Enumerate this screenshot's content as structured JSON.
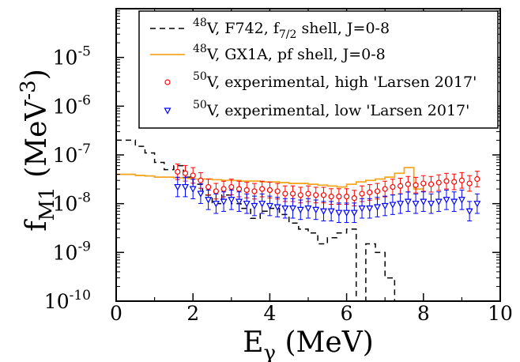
{
  "chart_data": {
    "type": "line",
    "title": "",
    "xlabel": {
      "main": "E",
      "sub": "γ",
      "unit": " (MeV)"
    },
    "ylabel": {
      "main": "f",
      "sub": "M1",
      "unit": " (MeV",
      "sup": "-3",
      "close": ")"
    },
    "xlim": [
      0,
      10
    ],
    "ylim": [
      1e-10,
      0.0001
    ],
    "yscale": "log",
    "grid": false,
    "legend_position": "top-right",
    "x_ticks": [
      {
        "value": 0,
        "label": "0"
      },
      {
        "value": 2,
        "label": "2"
      },
      {
        "value": 4,
        "label": "4"
      },
      {
        "value": 6,
        "label": "6"
      },
      {
        "value": 8,
        "label": "8"
      },
      {
        "value": 10,
        "label": "10"
      }
    ],
    "y_ticks": [
      {
        "value": 1e-10,
        "base": "10",
        "exp": "-10"
      },
      {
        "value": 1e-09,
        "base": "10",
        "exp": "-9"
      },
      {
        "value": 1e-08,
        "base": "10",
        "exp": "-8"
      },
      {
        "value": 1e-07,
        "base": "10",
        "exp": "-7"
      },
      {
        "value": 1e-06,
        "base": "10",
        "exp": "-6"
      },
      {
        "value": 1e-05,
        "base": "10",
        "exp": "-5"
      }
    ],
    "legend": [
      {
        "sup": "48",
        "text": "V, F742, f",
        "sub": "7/2",
        "text2": " shell, J=0-8"
      },
      {
        "sup": "48",
        "text": "V, GX1A, pf shell, J=0-8",
        "sub": "",
        "text2": ""
      },
      {
        "sup": "50",
        "text": "V, experimental, high 'Larsen 2017'",
        "sub": "",
        "text2": ""
      },
      {
        "sup": "50",
        "text": "V, experimental, low 'Larsen 2017'",
        "sub": "",
        "text2": ""
      }
    ],
    "series": [
      {
        "style": "dashed-step",
        "color": "#000000",
        "x": [
          0,
          0.25,
          0.5,
          0.75,
          1.0,
          1.25,
          1.5,
          1.75,
          2.0,
          2.25,
          2.5,
          2.75,
          3.0,
          3.25,
          3.5,
          3.75,
          4.0,
          4.25,
          4.5,
          4.75,
          5.0,
          5.25,
          5.5,
          5.75,
          6.0,
          6.25,
          6.5,
          6.75,
          7.0,
          7.25
        ],
        "y": [
          2e-07,
          2e-07,
          1.5e-07,
          1.1e-07,
          7e-08,
          5e-08,
          6e-08,
          3.5e-08,
          2.5e-08,
          1.5e-08,
          1e-08,
          1.5e-08,
          1e-08,
          8e-09,
          5e-09,
          7e-09,
          8e-09,
          6e-09,
          4e-09,
          3e-09,
          2.5e-09,
          1.5e-09,
          2e-09,
          2.5e-09,
          3e-09,
          1e-10,
          1.5e-09,
          1e-09,
          3e-10,
          1e-10
        ]
      },
      {
        "style": "step",
        "color": "#f5a623",
        "x": [
          0,
          0.25,
          0.5,
          0.75,
          1.0,
          1.25,
          1.5,
          1.75,
          2.0,
          2.25,
          2.5,
          2.75,
          3.0,
          3.25,
          3.5,
          3.75,
          4.0,
          4.25,
          4.5,
          4.75,
          5.0,
          5.25,
          5.5,
          5.75,
          6.0,
          6.25,
          6.5,
          6.75,
          7.0,
          7.25,
          7.5,
          7.75
        ],
        "y": [
          4e-08,
          4e-08,
          3.8e-08,
          3.7e-08,
          3.5e-08,
          3.5e-08,
          3.4e-08,
          3.3e-08,
          3.2e-08,
          3.2e-08,
          3.1e-08,
          3e-08,
          3e-08,
          2.9e-08,
          2.9e-08,
          2.8e-08,
          2.8e-08,
          2.7e-08,
          2.6e-08,
          2.6e-08,
          2.5e-08,
          2.4e-08,
          2.3e-08,
          2.2e-08,
          2.5e-08,
          2.8e-08,
          3e-08,
          3.2e-08,
          3.5e-08,
          4.2e-08,
          5.5e-08,
          2e-08
        ]
      },
      {
        "style": "points-circle",
        "color": "#ff0000",
        "x": [
          1.6,
          1.8,
          2.0,
          2.2,
          2.4,
          2.6,
          2.8,
          3.0,
          3.2,
          3.4,
          3.6,
          3.8,
          4.0,
          4.2,
          4.4,
          4.6,
          4.8,
          5.0,
          5.2,
          5.4,
          5.6,
          5.8,
          6.0,
          6.2,
          6.4,
          6.6,
          6.8,
          7.0,
          7.2,
          7.4,
          7.6,
          7.8,
          8.0,
          8.2,
          8.4,
          8.6,
          8.8,
          9.0,
          9.2,
          9.4
        ],
        "y": [
          4.5e-08,
          4.2e-08,
          3.8e-08,
          3e-08,
          2.2e-08,
          1.8e-08,
          2e-08,
          2.2e-08,
          2e-08,
          1.9e-08,
          1.8e-08,
          2e-08,
          1.9e-08,
          1.8e-08,
          1.6e-08,
          1.6e-08,
          1.5e-08,
          1.6e-08,
          1.5e-08,
          1.5e-08,
          1.4e-08,
          1.4e-08,
          1.4e-08,
          1.3e-08,
          1.6e-08,
          1.7e-08,
          1.8e-08,
          2e-08,
          2.2e-08,
          2.3e-08,
          2.5e-08,
          2.4e-08,
          2.6e-08,
          2.5e-08,
          2.7e-08,
          2.9e-08,
          2.8e-08,
          3e-08,
          2.6e-08,
          3.2e-08
        ],
        "err": 0.16
      },
      {
        "style": "points-triangle-down",
        "color": "#0000ff",
        "x": [
          1.6,
          1.8,
          2.0,
          2.2,
          2.4,
          2.6,
          2.8,
          3.0,
          3.2,
          3.4,
          3.6,
          3.8,
          4.0,
          4.2,
          4.4,
          4.6,
          4.8,
          5.0,
          5.2,
          5.4,
          5.6,
          5.8,
          6.0,
          6.2,
          6.4,
          6.6,
          6.8,
          7.0,
          7.2,
          7.4,
          7.6,
          7.8,
          8.0,
          8.2,
          8.4,
          8.6,
          8.8,
          9.0,
          9.2,
          9.4
        ],
        "y": [
          2.2e-08,
          2.2e-08,
          2e-08,
          1.6e-08,
          1.2e-08,
          1e-08,
          1.1e-08,
          1.2e-08,
          1.1e-08,
          1e-08,
          9e-09,
          1e-08,
          9e-09,
          8.5e-09,
          8e-09,
          8e-09,
          7.5e-09,
          8e-09,
          7.5e-09,
          7e-09,
          7e-09,
          6.5e-09,
          6.5e-09,
          6.5e-09,
          8e-09,
          8e-09,
          8.5e-09,
          9e-09,
          9.5e-09,
          1e-08,
          1.1e-08,
          1e-08,
          1.1e-08,
          1e-08,
          1.1e-08,
          1.2e-08,
          1.1e-08,
          1.2e-08,
          7e-09,
          1e-08
        ],
        "err": 0.2
      }
    ]
  }
}
